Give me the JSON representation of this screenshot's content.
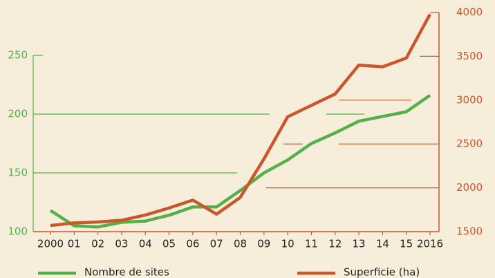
{
  "chart_data": {
    "type": "line",
    "categories": [
      "2000",
      "01",
      "02",
      "03",
      "04",
      "05",
      "06",
      "07",
      "08",
      "09",
      "10",
      "11",
      "12",
      "13",
      "14",
      "15",
      "2016"
    ],
    "series": [
      {
        "name": "Nombre de sites",
        "color": "#55b04a",
        "values": [
          118,
          105,
          104,
          108,
          109,
          114,
          121,
          121,
          135,
          150,
          161,
          175,
          184,
          194,
          198,
          202,
          216
        ]
      },
      {
        "name": "Superficie (ha)",
        "color": "#c9572b",
        "axis": "y2",
        "values": [
          1570,
          1600,
          1610,
          1630,
          1690,
          1770,
          1860,
          1700,
          1890,
          2330,
          2810,
          2940,
          3070,
          3400,
          3380,
          3480,
          3980
        ]
      }
    ],
    "ylim": [
      100,
      286.5
    ],
    "yticks": [
      100,
      150,
      200,
      250
    ],
    "y2lim": [
      1500,
      4000
    ],
    "y2ticks": [
      1500,
      2000,
      2500,
      3000,
      3500,
      4000
    ],
    "grid": true
  }
}
